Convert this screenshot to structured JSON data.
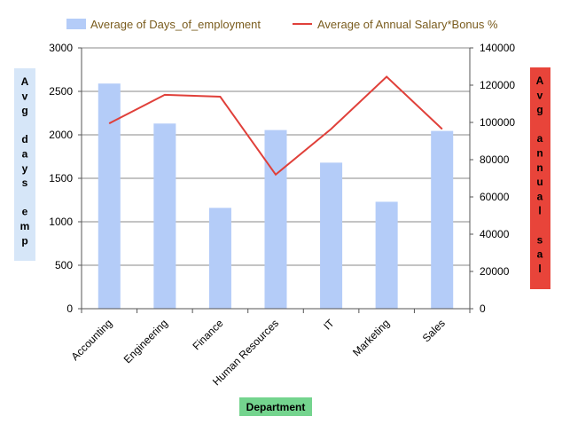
{
  "chart_data": {
    "type": "bar",
    "categories": [
      "Accounting",
      "Engineering",
      "Finance",
      "Human Resources",
      "IT",
      "Marketing",
      "Sales"
    ],
    "series": [
      {
        "name": "Average of Days_of_employment",
        "type": "bar",
        "axis": "left",
        "values": [
          2590,
          2130,
          1160,
          2055,
          1680,
          1230,
          2045
        ]
      },
      {
        "name": "Average of Annual Salary*Bonus %",
        "type": "line",
        "axis": "right",
        "values": [
          99500,
          114800,
          113800,
          72000,
          96500,
          124500,
          96500
        ]
      }
    ],
    "y_left": {
      "label": "Avg days emp",
      "ylim": [
        0,
        3000
      ],
      "ticks": [
        0,
        500,
        1000,
        1500,
        2000,
        2500,
        3000
      ]
    },
    "y_right": {
      "label": "Avg annual sal",
      "ylim": [
        0,
        140000
      ],
      "ticks": [
        0,
        20000,
        40000,
        60000,
        80000,
        100000,
        120000,
        140000
      ]
    },
    "xlabel": "Department",
    "legend": "top",
    "grid": true,
    "colors": {
      "bar": "#b4ccf8",
      "line": "#e0403a",
      "left_label_bg": "#d6e6f8",
      "left_label_text": "#000000",
      "right_label_bg": "#e8443a",
      "right_label_text": "#000000",
      "xlabel_bg": "#74d48e",
      "legend_text": "#7a5c1e"
    }
  }
}
